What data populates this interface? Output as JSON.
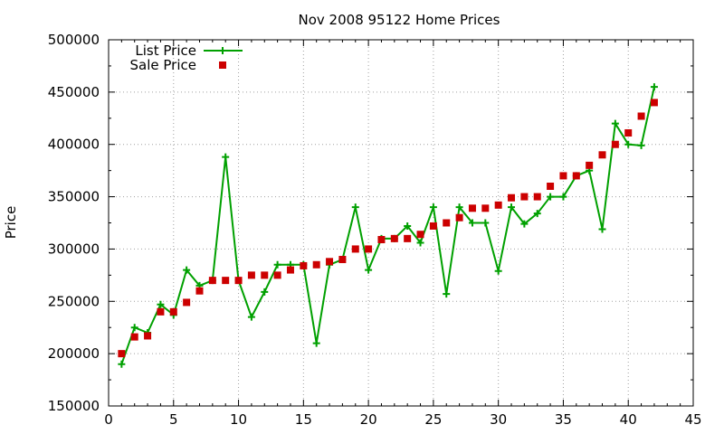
{
  "chart_data": {
    "type": "line",
    "title": "Nov 2008 95122 Home Prices",
    "xlabel": "",
    "ylabel": "Price",
    "xlim": [
      0,
      45
    ],
    "ylim": [
      150000,
      500000
    ],
    "xticks": [
      0,
      5,
      10,
      15,
      20,
      25,
      30,
      35,
      40,
      45
    ],
    "yticks": [
      150000,
      200000,
      250000,
      300000,
      350000,
      400000,
      450000,
      500000
    ],
    "x_tick_labels": [
      "0",
      "5",
      "10",
      "15",
      "20",
      "25",
      "30",
      "35",
      "40",
      "45"
    ],
    "y_tick_labels": [
      "150000",
      "200000",
      "250000",
      "300000",
      "350000",
      "400000",
      "450000",
      "500000"
    ],
    "grid": true,
    "legend_position": "top-left",
    "series": [
      {
        "name": "List Price",
        "style": "line-with-plus-markers",
        "color": "#00a000",
        "x": [
          1,
          2,
          3,
          4,
          5,
          6,
          7,
          8,
          9,
          10,
          11,
          12,
          13,
          14,
          15,
          16,
          17,
          18,
          19,
          20,
          21,
          22,
          23,
          24,
          25,
          26,
          27,
          28,
          29,
          30,
          31,
          32,
          33,
          34,
          35,
          36,
          37,
          38,
          39,
          40,
          41,
          42
        ],
        "y": [
          190000,
          225000,
          220000,
          247000,
          237000,
          280000,
          265000,
          270000,
          388000,
          270000,
          235000,
          259000,
          285000,
          285000,
          285000,
          210000,
          285000,
          290000,
          340000,
          280000,
          310000,
          310000,
          322000,
          306000,
          340000,
          257000,
          340000,
          325000,
          325000,
          279000,
          340000,
          324000,
          334000,
          350000,
          350000,
          370000,
          375000,
          319000,
          420000,
          400000,
          399000,
          455000
        ]
      },
      {
        "name": "Sale Price",
        "style": "square-markers",
        "color": "#cc0000",
        "x": [
          1,
          2,
          3,
          4,
          5,
          6,
          7,
          8,
          9,
          10,
          11,
          12,
          13,
          14,
          15,
          16,
          17,
          18,
          19,
          20,
          21,
          22,
          23,
          24,
          25,
          26,
          27,
          28,
          29,
          30,
          31,
          32,
          33,
          34,
          35,
          36,
          37,
          38,
          39,
          40,
          41,
          42
        ],
        "y": [
          200000,
          216000,
          217000,
          240000,
          240000,
          249000,
          260000,
          270000,
          270000,
          270000,
          275000,
          275000,
          275000,
          280000,
          284000,
          285000,
          288000,
          290000,
          300000,
          300000,
          309000,
          310000,
          310000,
          314000,
          322000,
          325000,
          330000,
          339000,
          339000,
          342000,
          349000,
          350000,
          350000,
          360000,
          370000,
          370000,
          380000,
          390000,
          400000,
          411000,
          427000,
          440000
        ]
      }
    ]
  }
}
